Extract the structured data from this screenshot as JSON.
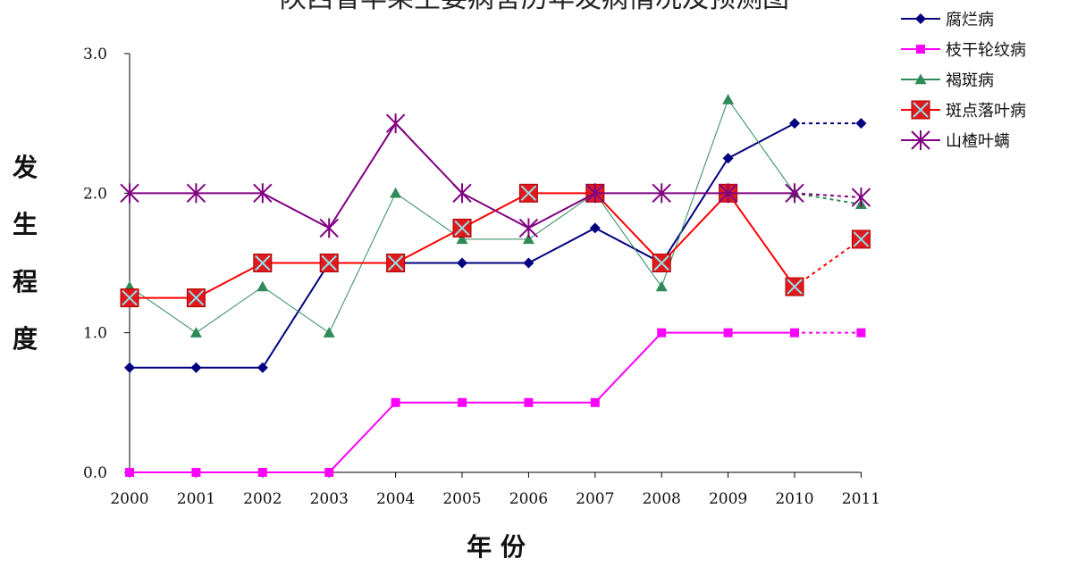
{
  "chart_data": {
    "type": "line",
    "title": "陕西省苹果主要病害历年发病情况及预测图",
    "xlabel": "年 份",
    "ylabel": "发生程度",
    "categories": [
      "2000",
      "2001",
      "2002",
      "2003",
      "2004",
      "2005",
      "2006",
      "2007",
      "2008",
      "2009",
      "2010",
      "2011"
    ],
    "ylim": [
      0,
      3
    ],
    "yticks": [
      "0.0",
      "1.0",
      "2.0",
      "3.0"
    ],
    "ytick_values": [
      0,
      1,
      2,
      3
    ],
    "predicted_from_index": 10,
    "legend_position": "top-right",
    "grid": false,
    "series": [
      {
        "name": "腐烂病",
        "color": "#000080",
        "marker": "diamond",
        "values": [
          0.75,
          0.75,
          0.75,
          1.5,
          1.5,
          1.5,
          1.5,
          1.75,
          1.5,
          2.25,
          2.5,
          2.5
        ]
      },
      {
        "name": "枝干轮纹病",
        "color": "#ff00ff",
        "marker": "square",
        "values": [
          0,
          0,
          0,
          0,
          0.5,
          0.5,
          0.5,
          0.5,
          1.0,
          1.0,
          1.0,
          1.0
        ]
      },
      {
        "name": "褐斑病",
        "color": "#2e8b57",
        "marker": "triangle",
        "values": [
          1.33,
          1.0,
          1.33,
          1.0,
          2.0,
          1.67,
          1.67,
          2.0,
          1.33,
          2.67,
          2.0,
          1.92
        ]
      },
      {
        "name": "斑点落叶病",
        "color": "#ff0000",
        "marker": "xsquare",
        "values": [
          1.25,
          1.25,
          1.5,
          1.5,
          1.5,
          1.75,
          2.0,
          2.0,
          1.5,
          2.0,
          1.33,
          1.67
        ]
      },
      {
        "name": "山楂叶螨",
        "color": "#800080",
        "marker": "star",
        "values": [
          2.0,
          2.0,
          2.0,
          1.75,
          2.5,
          2.0,
          1.75,
          2.0,
          2.0,
          2.0,
          2.0,
          1.97
        ]
      }
    ]
  }
}
